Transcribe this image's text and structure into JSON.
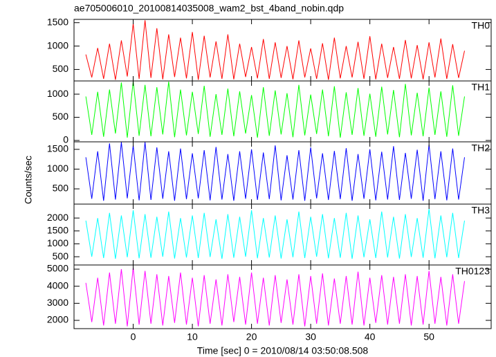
{
  "chart_data": [
    {
      "type": "line",
      "title": "ae705006010_20100814035008_wam2_bst_4band_nobin.qdp",
      "x": [
        -8,
        -7,
        -6,
        -5,
        -4,
        -3,
        -2,
        -1,
        0,
        1,
        2,
        3,
        4,
        5,
        6,
        7,
        8,
        9,
        10,
        11,
        12,
        13,
        14,
        15,
        16,
        17,
        18,
        19,
        20,
        21,
        22,
        23,
        24,
        25,
        26,
        27,
        28,
        29,
        30,
        31,
        32,
        33,
        34,
        35,
        36,
        37,
        38,
        39,
        40,
        41,
        42,
        43,
        44,
        45,
        46,
        47,
        48,
        49,
        50,
        51,
        52,
        53,
        54,
        55,
        56
      ],
      "xlim": [
        -10,
        60.5
      ],
      "ylim": [
        255,
        1570
      ],
      "yticks": [
        500,
        1000,
        1500
      ],
      "series": [
        {
          "name": "TH0",
          "color": "#ff0000",
          "values": [
            820,
            330,
            960,
            300,
            1050,
            280,
            1120,
            350,
            1480,
            300,
            1550,
            320,
            1380,
            290,
            1250,
            340,
            1180,
            310,
            1300,
            280,
            1220,
            330,
            1100,
            300,
            1250,
            290,
            1050,
            340,
            980,
            310,
            1150,
            300,
            1080,
            320,
            1000,
            290,
            1120,
            330,
            950,
            300,
            1060,
            280,
            1180,
            310,
            1000,
            330,
            1090,
            300,
            1210,
            290,
            1050,
            320,
            980,
            300,
            1130,
            310,
            1020,
            290,
            1080,
            330,
            1160,
            300,
            1040,
            320,
            900
          ]
        }
      ]
    },
    {
      "type": "line",
      "x": [
        -8,
        -7,
        -6,
        -5,
        -4,
        -3,
        -2,
        -1,
        0,
        1,
        2,
        3,
        4,
        5,
        6,
        7,
        8,
        9,
        10,
        11,
        12,
        13,
        14,
        15,
        16,
        17,
        18,
        19,
        20,
        21,
        22,
        23,
        24,
        25,
        26,
        27,
        28,
        29,
        30,
        31,
        32,
        33,
        34,
        35,
        36,
        37,
        38,
        39,
        40,
        41,
        42,
        43,
        44,
        45,
        46,
        47,
        48,
        49,
        50,
        51,
        52,
        53,
        54,
        55,
        56
      ],
      "xlim": [
        -10,
        60.5
      ],
      "ylim": [
        -30,
        1285
      ],
      "yticks": [
        0,
        500,
        1000
      ],
      "series": [
        {
          "name": "TH1",
          "color": "#00ff00",
          "values": [
            950,
            120,
            1050,
            80,
            1100,
            150,
            1250,
            60,
            1280,
            100,
            1200,
            90,
            1150,
            130,
            1270,
            70,
            1100,
            110,
            1050,
            140,
            1180,
            80,
            1000,
            120,
            1120,
            90,
            1060,
            150,
            980,
            60,
            1150,
            100,
            1080,
            130,
            1020,
            70,
            1200,
            110,
            990,
            140,
            1100,
            90,
            1170,
            60,
            1040,
            120,
            1130,
            100,
            1010,
            80,
            1160,
            130,
            1090,
            70,
            1220,
            110,
            1030,
            90,
            1140,
            120,
            1060,
            80,
            1190,
            100,
            950
          ]
        }
      ]
    },
    {
      "type": "line",
      "y_label": "Counts/sec",
      "x": [
        -8,
        -7,
        -6,
        -5,
        -4,
        -3,
        -2,
        -1,
        0,
        1,
        2,
        3,
        4,
        5,
        6,
        7,
        8,
        9,
        10,
        11,
        12,
        13,
        14,
        15,
        16,
        17,
        18,
        19,
        20,
        21,
        22,
        23,
        24,
        25,
        26,
        27,
        28,
        29,
        30,
        31,
        32,
        33,
        34,
        35,
        36,
        37,
        38,
        39,
        40,
        41,
        42,
        43,
        44,
        45,
        46,
        47,
        48,
        49,
        50,
        51,
        52,
        53,
        54,
        55,
        56
      ],
      "xlim": [
        -10,
        60.5
      ],
      "ylim": [
        115,
        1690
      ],
      "yticks": [
        500,
        1000,
        1500
      ],
      "series": [
        {
          "name": "TH2",
          "color": "#0000ff",
          "values": [
            1300,
            250,
            1450,
            200,
            1650,
            230,
            1680,
            260,
            1600,
            210,
            1680,
            220,
            1550,
            250,
            1450,
            200,
            1520,
            240,
            1400,
            260,
            1480,
            210,
            1560,
            230,
            1380,
            200,
            1450,
            250,
            1500,
            220,
            1420,
            240,
            1600,
            210,
            1350,
            230,
            1480,
            200,
            1550,
            260,
            1400,
            220,
            1460,
            240,
            1530,
            200,
            1380,
            250,
            1500,
            210,
            1440,
            230,
            1580,
            220,
            1410,
            250,
            1490,
            200,
            1620,
            240,
            1450,
            210,
            1520,
            230,
            1300
          ]
        }
      ]
    },
    {
      "type": "line",
      "x": [
        -8,
        -7,
        -6,
        -5,
        -4,
        -3,
        -2,
        -1,
        0,
        1,
        2,
        3,
        4,
        5,
        6,
        7,
        8,
        9,
        10,
        11,
        12,
        13,
        14,
        15,
        16,
        17,
        18,
        19,
        20,
        21,
        22,
        23,
        24,
        25,
        26,
        27,
        28,
        29,
        30,
        31,
        32,
        33,
        34,
        35,
        36,
        37,
        38,
        39,
        40,
        41,
        42,
        43,
        44,
        45,
        46,
        47,
        48,
        49,
        50,
        51,
        52,
        53,
        54,
        55,
        56
      ],
      "xlim": [
        -10,
        60.5
      ],
      "ylim": [
        180,
        2540
      ],
      "yticks": [
        500,
        1000,
        1500,
        2000
      ],
      "series": [
        {
          "name": "TH3",
          "color": "#00ffff",
          "values": [
            1900,
            500,
            2000,
            450,
            2200,
            420,
            2100,
            480,
            2300,
            440,
            2150,
            460,
            2050,
            500,
            2250,
            430,
            2000,
            470,
            2100,
            450,
            2200,
            490,
            1950,
            420,
            2150,
            460,
            2050,
            500,
            2300,
            440,
            2000,
            470,
            2100,
            430,
            1950,
            480,
            2250,
            450,
            2050,
            500,
            2150,
            440,
            2000,
            460,
            2200,
            420,
            2100,
            480,
            1950,
            450,
            2250,
            470,
            2050,
            430,
            2150,
            490,
            2000,
            460,
            2350,
            440,
            2100,
            480,
            2200,
            450,
            1900
          ]
        }
      ]
    },
    {
      "type": "line",
      "x_label": "Time [sec] 0 = 2010/08/14 03:50:08.508",
      "x": [
        -8,
        -7,
        -6,
        -5,
        -4,
        -3,
        -2,
        -1,
        0,
        1,
        2,
        3,
        4,
        5,
        6,
        7,
        8,
        9,
        10,
        11,
        12,
        13,
        14,
        15,
        16,
        17,
        18,
        19,
        20,
        21,
        22,
        23,
        24,
        25,
        26,
        27,
        28,
        29,
        30,
        31,
        32,
        33,
        34,
        35,
        36,
        37,
        38,
        39,
        40,
        41,
        42,
        43,
        44,
        45,
        46,
        47,
        48,
        49,
        50,
        51,
        52,
        53,
        54,
        55,
        56
      ],
      "xlim": [
        -10,
        60.5
      ],
      "xticks": [
        0,
        10,
        20,
        30,
        40,
        50
      ],
      "ylim": [
        1515,
        5245
      ],
      "yticks": [
        2000,
        3000,
        4000,
        5000
      ],
      "series": [
        {
          "name": "TH0123",
          "color": "#ff00ff",
          "values": [
            4200,
            1900,
            4500,
            1700,
            4800,
            1800,
            5000,
            1650,
            5100,
            1750,
            4900,
            1800,
            4700,
            1700,
            4600,
            1850,
            4800,
            1750,
            4500,
            1650,
            4650,
            1800,
            4400,
            1700,
            4700,
            1900,
            4550,
            1750,
            4800,
            1800,
            4500,
            1700,
            4650,
            1850,
            4400,
            1750,
            4700,
            1650,
            4600,
            1800,
            4750,
            1700,
            4450,
            1800,
            4600,
            1750,
            4850,
            1700,
            4500,
            1850,
            4650,
            1750,
            4550,
            1800,
            4700,
            1700,
            4600,
            1750,
            4900,
            1800,
            4550,
            1700,
            4700,
            1800,
            4300
          ]
        }
      ]
    }
  ]
}
